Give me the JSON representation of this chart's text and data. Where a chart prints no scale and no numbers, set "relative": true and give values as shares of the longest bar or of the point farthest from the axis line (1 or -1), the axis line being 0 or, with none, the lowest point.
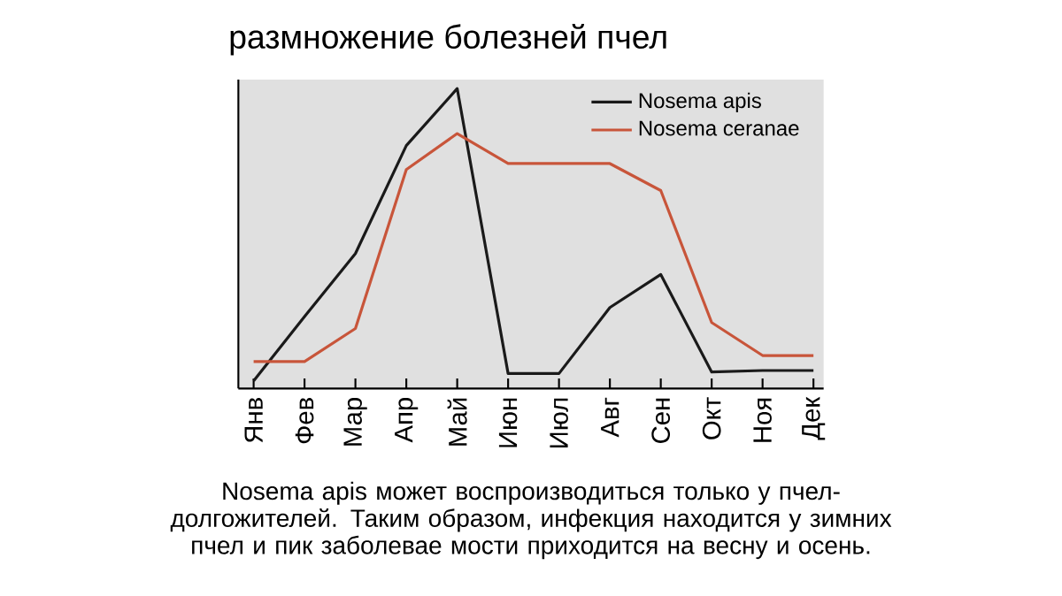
{
  "chart_data": {
    "type": "line",
    "title": "размножение болезней пчел",
    "categories": [
      "Янв",
      "Фев",
      "Мар",
      "Апр",
      "Май",
      "Июн",
      "Июл",
      "Авг",
      "Сен",
      "Окт",
      "Ноя",
      "Дек"
    ],
    "relative": true,
    "legend": "top right",
    "marker": "none",
    "line_style": "solid",
    "series": [
      {
        "name": "Nosema apis",
        "color": "#1a1a1a",
        "values": [
          0.025,
          0.24,
          0.45,
          0.81,
          1,
          0.05,
          0.05,
          0.27,
          0.38,
          0.055,
          0.06,
          0.06
        ]
      },
      {
        "name": "Nosema ceranae",
        "color": "#c8553a",
        "values": [
          0.09,
          0.09,
          0.2,
          0.73,
          0.85,
          0.75,
          0.75,
          0.75,
          0.66,
          0.22,
          0.11,
          0.11
        ]
      }
    ],
    "annotations": [
      "Nosema apis может воспроизводиться только у пчел-долгожителей. Таким образом, инфекция находится у зимних пчел и пик заболевае мости приходится на  весну и осень."
    ]
  }
}
